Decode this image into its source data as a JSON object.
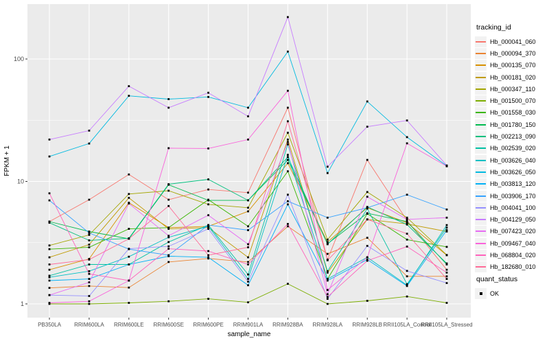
{
  "figure": {
    "background": "#FFFFFF",
    "panel_background": "#EBEBEB",
    "grid_color": "#FFFFFF",
    "tick_color": "#333333",
    "tick_label_color": "#4D4D4D",
    "marker_color": "#000000"
  },
  "legend": {
    "tracking_title": "tracking_id",
    "quant_title": "quant_status",
    "quant_entries": [
      {
        "label": "OK",
        "marker": "square",
        "color": "#000000"
      }
    ]
  },
  "chart_data": {
    "type": "line",
    "title": "",
    "xlabel": "sample_name",
    "ylabel": "FPKM + 1",
    "y_scale": "log10",
    "ylim": [
      0.77,
      280
    ],
    "y_ticks": [
      1,
      10,
      100
    ],
    "y_minor_ticks": [
      3.1623,
      31.623
    ],
    "grid": true,
    "legend_position": "right",
    "point_marker": "square",
    "categories": [
      "PB350LA",
      "RRIM600LA",
      "RRIM600LE",
      "RRIM600SE",
      "RRIM600PE",
      "RRIM901LA",
      "RRIM928BA",
      "RRIM928LA",
      "RRIM928LB",
      "RRII105LA_Control",
      "RRII105LA_Stressed"
    ],
    "series": [
      {
        "name": "Hb_000041_060",
        "color": "#F8766D",
        "values": [
          4.7,
          7.1,
          11.4,
          7.1,
          8.6,
          8.1,
          40,
          2.3,
          15,
          4.8,
          1.9
        ]
      },
      {
        "name": "Hb_000094_370",
        "color": "#EA8331",
        "values": [
          1.35,
          1.4,
          1.36,
          2.2,
          2.35,
          2.2,
          4.3,
          2.56,
          3.47,
          1.68,
          1.68
        ]
      },
      {
        "name": "Hb_000135_070",
        "color": "#D89000",
        "values": [
          1.9,
          2.33,
          6.7,
          4.2,
          4.3,
          5.7,
          14.1,
          3.2,
          6.1,
          4.6,
          2.5
        ]
      },
      {
        "name": "Hb_000181_020",
        "color": "#C09B00",
        "values": [
          2.4,
          3.05,
          7.35,
          4.1,
          4.2,
          2.4,
          22,
          1.8,
          4.9,
          4.5,
          3.9
        ]
      },
      {
        "name": "Hb_000347_110",
        "color": "#A3A500",
        "values": [
          3.0,
          3.66,
          7.9,
          8.4,
          6.5,
          6.1,
          25,
          3.35,
          8.2,
          5.06,
          2.51
        ]
      },
      {
        "name": "Hb_001500_070",
        "color": "#7CAE00",
        "values": [
          1.0,
          1.0,
          1.02,
          1.05,
          1.1,
          1.03,
          1.46,
          1.0,
          1.06,
          1.15,
          1.02
        ]
      },
      {
        "name": "Hb_001558_030",
        "color": "#39B600",
        "values": [
          2.8,
          2.9,
          4.1,
          4.2,
          7.1,
          4.3,
          12.1,
          1.6,
          5.45,
          3.35,
          2.92
        ]
      },
      {
        "name": "Hb_001780_150",
        "color": "#00BB4E",
        "values": [
          4.7,
          3.9,
          3.4,
          9.4,
          7.0,
          7.0,
          15,
          3.1,
          5.5,
          4.7,
          2.1
        ]
      },
      {
        "name": "Hb_002213_090",
        "color": "#00BF7D",
        "values": [
          4.6,
          3.3,
          3.43,
          9.5,
          10.4,
          7.0,
          15.8,
          3.07,
          6.2,
          4.45,
          2.14
        ]
      },
      {
        "name": "Hb_002539_020",
        "color": "#00C1A3",
        "values": [
          1.7,
          2.1,
          2.1,
          3.2,
          4.4,
          1.74,
          20.1,
          1.85,
          6.0,
          1.45,
          4.2
        ]
      },
      {
        "name": "Hb_003626_040",
        "color": "#00BFC4",
        "values": [
          1.65,
          1.85,
          2.43,
          3.5,
          4.3,
          1.6,
          16.5,
          1.6,
          2.4,
          1.42,
          4.4
        ]
      },
      {
        "name": "Hb_003626_050",
        "color": "#00BAE0",
        "values": [
          16,
          20.4,
          50,
          47,
          49,
          40,
          115,
          11.7,
          45,
          23,
          13.4
        ]
      },
      {
        "name": "Hb_003813_120",
        "color": "#00B0F6",
        "values": [
          1.55,
          1.6,
          2.1,
          2.45,
          2.4,
          1.42,
          6.5,
          1.55,
          2.3,
          1.4,
          4.0
        ]
      },
      {
        "name": "Hb_003906_170",
        "color": "#35A2FF",
        "values": [
          7.0,
          3.8,
          2.8,
          2.5,
          4.4,
          4.0,
          6.9,
          5.06,
          6.1,
          7.8,
          5.9
        ]
      },
      {
        "name": "Hb_004041_100",
        "color": "#9590FF",
        "values": [
          1.18,
          1.16,
          2.82,
          2.95,
          4.1,
          1.52,
          7.8,
          1.1,
          2.98,
          1.86,
          1.48
        ]
      },
      {
        "name": "Hb_004129_050",
        "color": "#C77CFF",
        "values": [
          22,
          26,
          60,
          40,
          53,
          34,
          220,
          13.2,
          28,
          31.5,
          13.5
        ]
      },
      {
        "name": "Hb_007423_020",
        "color": "#E76BF3",
        "values": [
          1.18,
          1.5,
          6.6,
          3.6,
          5.3,
          3.07,
          21,
          1.2,
          7.5,
          4.9,
          5.06
        ]
      },
      {
        "name": "Hb_009467_040",
        "color": "#FA62DB",
        "values": [
          1.02,
          1.05,
          1.55,
          18.7,
          18.6,
          22,
          55,
          1.3,
          2.4,
          20.5,
          13.3
        ]
      },
      {
        "name": "Hb_068804_020",
        "color": "#FF62BC",
        "values": [
          8.0,
          1.76,
          1.55,
          2.82,
          2.7,
          2.1,
          4.5,
          1.14,
          2.25,
          2.94,
          1.8
        ]
      },
      {
        "name": "Hb_182680_010",
        "color": "#FF6A98",
        "values": [
          2.1,
          2.3,
          3.4,
          6.3,
          2.5,
          2.9,
          31,
          2.27,
          4.9,
          3.74,
          1.6
        ]
      }
    ]
  }
}
